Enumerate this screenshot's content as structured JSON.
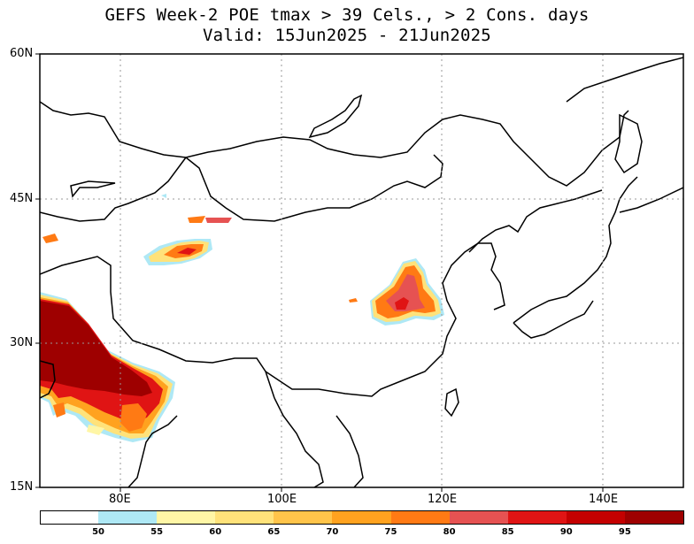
{
  "title": {
    "line1": "GEFS Week-2 POE tmax > 39 Cels., > 2 Cons. days",
    "line2": "Valid: 15Jun2025 - 21Jun2025"
  },
  "map": {
    "lat_labels": [
      "60N",
      "45N",
      "30N",
      "15N"
    ],
    "lon_labels": [
      "80E",
      "100E",
      "120E",
      "140E"
    ],
    "extent": {
      "lon_min": 70,
      "lon_max": 150,
      "lat_min": 15,
      "lat_max": 60
    },
    "grid": true
  },
  "colorbar": {
    "colors": [
      "#ffffff",
      "#aee8f5",
      "#fff6a6",
      "#ffe27a",
      "#ffc44a",
      "#ffa21f",
      "#ff7a14",
      "#e65252",
      "#e01414",
      "#c40000",
      "#9e0000"
    ],
    "labels": [
      "50",
      "55",
      "60",
      "65",
      "70",
      "75",
      "80",
      "85",
      "90",
      "95"
    ]
  }
}
